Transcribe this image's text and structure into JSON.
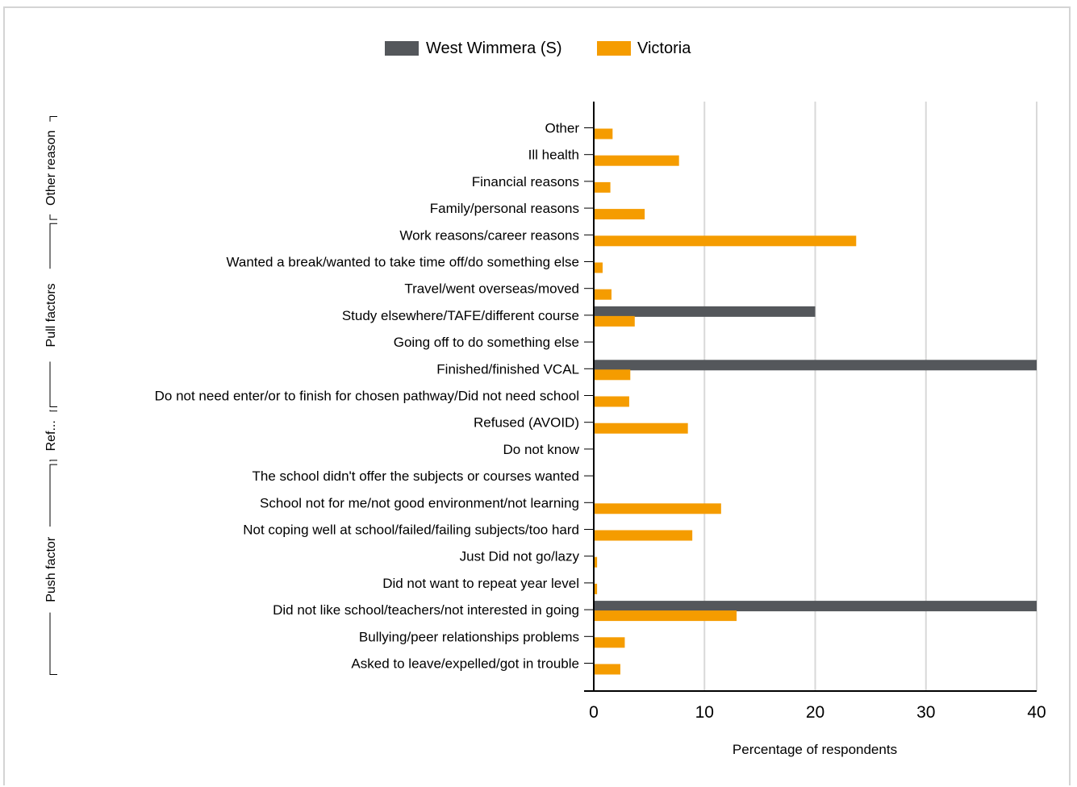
{
  "chart_data": {
    "type": "bar",
    "orientation": "horizontal",
    "xlabel": "Percentage of respondents",
    "xlim": [
      0,
      40
    ],
    "xticks": [
      0,
      10,
      20,
      30,
      40
    ],
    "grid": true,
    "legend_position": "top-center",
    "series": [
      {
        "name": "West Wimmera (S)",
        "color": "#54575b"
      },
      {
        "name": "Victoria",
        "color": "#f59c00"
      }
    ],
    "categories": [
      "Other",
      "Ill health",
      "Financial reasons",
      "Family/personal reasons",
      "Work reasons/career reasons",
      "Wanted a break/wanted to take time off/do something else",
      "Travel/went overseas/moved",
      "Study elsewhere/TAFE/different course",
      "Going off to do something else",
      "Finished/finished VCAL",
      "Do not need enter/or to finish for chosen pathway/Did not need school",
      "Refused (AVOID)",
      "Do not know",
      "The school didn't offer the subjects or courses wanted",
      "School not for me/not good environment/not learning",
      "Not coping well at school/failed/failing subjects/too hard",
      "Just Did not go/lazy",
      "Did not want to repeat year level",
      "Did not like school/teachers/not interested in going",
      "Bullying/peer relationships problems",
      "Asked to leave/expelled/got in trouble"
    ],
    "values": {
      "West Wimmera (S)": [
        0,
        0,
        0,
        0,
        0,
        0,
        0,
        20,
        0,
        40,
        0,
        0,
        0,
        0,
        0,
        0,
        0,
        0,
        40,
        0,
        0
      ],
      "Victoria": [
        1.7,
        7.7,
        1.5,
        4.6,
        23.7,
        0.8,
        1.6,
        3.7,
        0,
        3.3,
        3.2,
        8.5,
        0,
        0,
        11.5,
        8.9,
        0.3,
        0.3,
        12.9,
        2.8,
        2.4
      ]
    },
    "groups": [
      {
        "label": "Other reason",
        "from": 0,
        "to": 3
      },
      {
        "label": "Pull factors",
        "from": 4,
        "to": 10
      },
      {
        "label": "Ref...",
        "from": 11,
        "to": 12
      },
      {
        "label": "Push factor",
        "from": 13,
        "to": 20
      }
    ]
  }
}
